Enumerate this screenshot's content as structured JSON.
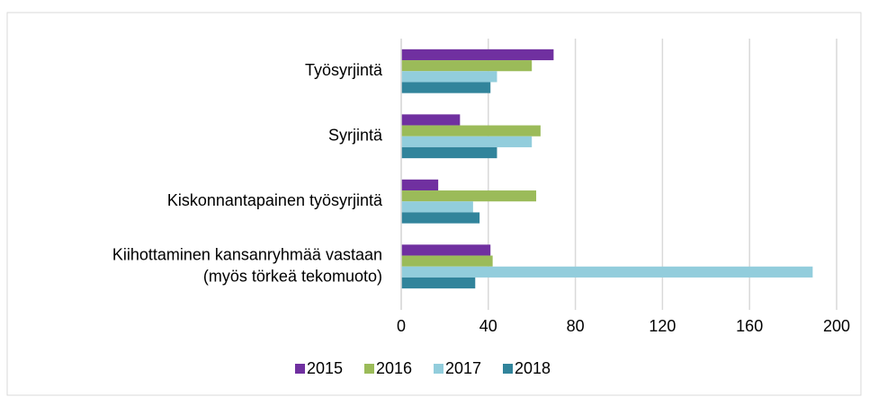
{
  "chart_data": {
    "type": "bar",
    "orientation": "horizontal",
    "categories": [
      "Työsyrjintä",
      "Syrjintä",
      "Kiskonnantapainen työsyrjintä",
      [
        "Kiihottaminen kansanryhmää vastaan",
        "(myös törkeä tekomuoto)"
      ]
    ],
    "series": [
      {
        "name": "2015",
        "color": "#7030a0",
        "values": [
          70,
          27,
          17,
          41
        ]
      },
      {
        "name": "2016",
        "color": "#9bbb59",
        "values": [
          60,
          64,
          62,
          42
        ]
      },
      {
        "name": "2017",
        "color": "#92cddc",
        "values": [
          44,
          60,
          33,
          189
        ]
      },
      {
        "name": "2018",
        "color": "#31849b",
        "values": [
          41,
          44,
          36,
          34
        ]
      }
    ],
    "xlim": [
      0,
      200
    ],
    "xticks": [
      0,
      40,
      80,
      120,
      160,
      200
    ],
    "grid": true,
    "legend": "bottom"
  }
}
